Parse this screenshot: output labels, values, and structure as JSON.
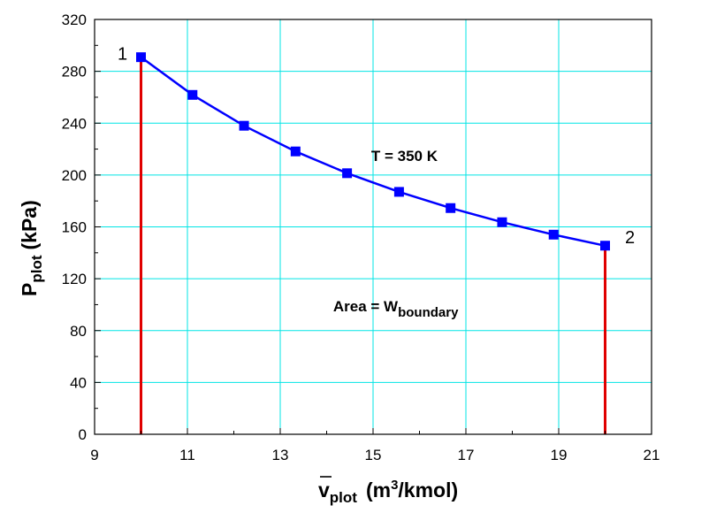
{
  "chart_data": {
    "type": "line",
    "xlabel": {
      "main": "v",
      "sub": "plot",
      "rest_pre": "(m",
      "sup": "3",
      "rest_post": "/kmol)"
    },
    "ylabel": {
      "main": "P",
      "sub": "plot",
      "rest": "(kPa)"
    },
    "xlim": [
      9,
      21
    ],
    "ylim": [
      0,
      320
    ],
    "x_ticks": [
      9,
      11,
      13,
      15,
      17,
      19,
      21
    ],
    "y_ticks": [
      0,
      40,
      80,
      120,
      160,
      200,
      240,
      280,
      320
    ],
    "grid": true,
    "colors": {
      "grid": "#00e5e5",
      "line": "#0000ff",
      "marker": "#0000ff",
      "boundary": "#e00000",
      "frame": "#000000"
    },
    "series": [
      {
        "x": [
          10.0,
          11.11,
          12.22,
          13.33,
          14.44,
          15.56,
          16.67,
          17.78,
          18.89,
          20.0
        ],
        "y": [
          290.9,
          261.8,
          238.0,
          218.2,
          201.4,
          187.0,
          174.5,
          163.6,
          154.0,
          145.5
        ]
      }
    ],
    "boundary_lines": [
      {
        "x": 10.0,
        "y_from": 0,
        "y_to": 290.9
      },
      {
        "x": 20.0,
        "y_from": 0,
        "y_to": 145.5
      }
    ],
    "annotations": {
      "state1": "1",
      "state2": "2",
      "temperature": "T = 350 K",
      "area_prefix": "Area = W",
      "area_sub": "boundary"
    }
  }
}
